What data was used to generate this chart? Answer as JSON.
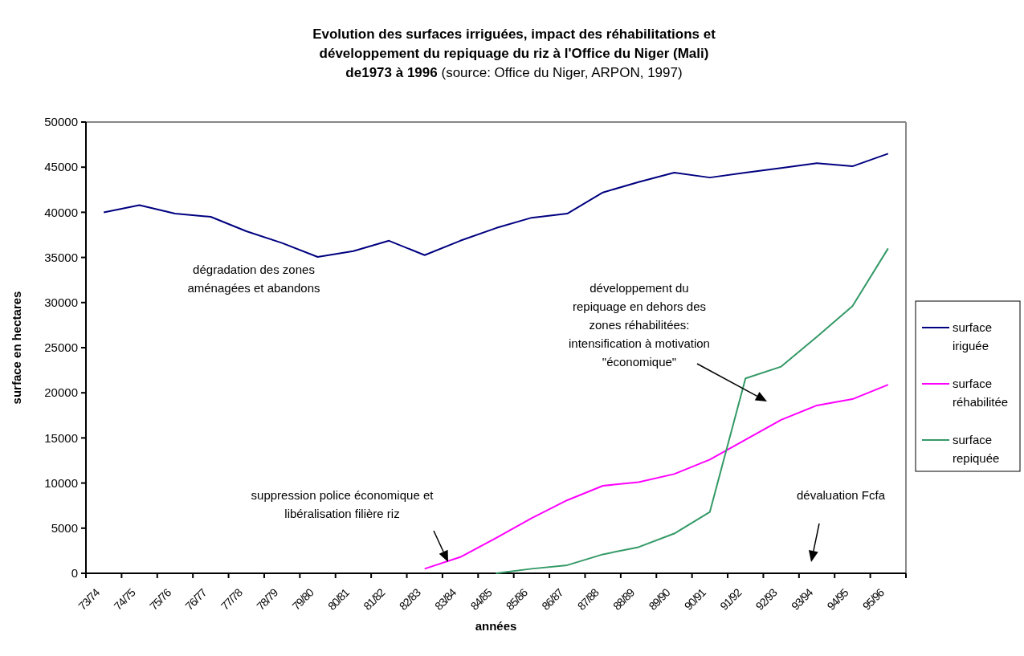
{
  "chart_data": {
    "type": "line",
    "title": "Evolution des surfaces irriguées, impact des réhabilitations et\ndéveloppement du repiquage du riz à l'Office du Niger (Mali)\nde1973 à 1996",
    "xlabel": "années",
    "ylabel": "surface en hectares",
    "categories": [
      "73/74",
      "74/75",
      "75/76",
      "76/77",
      "77/78",
      "78/79",
      "79/80",
      "80/81",
      "81/82",
      "82/83",
      "83/84",
      "84/85",
      "85/86",
      "86/87",
      "87/88",
      "88/89",
      "89/90",
      "90/91",
      "91/92",
      "92/93",
      "93/94",
      "94/95",
      "95/96"
    ],
    "series": [
      {
        "name": "surface iriguée",
        "color": "#000080",
        "values": [
          40000,
          40800,
          39850,
          39500,
          37900,
          36600,
          35050,
          35700,
          36850,
          35250,
          36850,
          38250,
          39400,
          39850,
          42200,
          43350,
          44400,
          43850,
          44400,
          44900,
          45450,
          45100,
          46500
        ]
      },
      {
        "name": "surface réhabilitée",
        "color": "#ff00ff",
        "values": [
          null,
          null,
          null,
          null,
          null,
          null,
          null,
          null,
          null,
          500,
          1800,
          3900,
          6100,
          8100,
          9700,
          10100,
          11000,
          12600,
          14800,
          17000,
          18600,
          19300,
          20900
        ]
      },
      {
        "name": "surface repiquée",
        "color": "#339966",
        "values": [
          null,
          null,
          null,
          null,
          null,
          null,
          null,
          null,
          null,
          null,
          null,
          0,
          500,
          900,
          2100,
          2900,
          4400,
          6800,
          21600,
          22900,
          26200,
          29600,
          36000
        ]
      }
    ],
    "ylim": [
      0,
      50000
    ],
    "yticks": [
      0,
      5000,
      10000,
      15000,
      20000,
      25000,
      30000,
      35000,
      40000,
      45000,
      50000
    ],
    "grid": false,
    "legend": "right",
    "marker": "none",
    "line_style": "solid",
    "annotations": [
      "(source: Office du Niger, ARPON, 1997)",
      "dégradation des zones\naménagées et abandons",
      "développement du\nrepiquage en dehors des\nzones réhabilitées:\nintensification  à motivation\n\"économique\"",
      "suppression police économique et\nlibéralisation filière riz",
      "dévaluation Fcfa"
    ]
  }
}
